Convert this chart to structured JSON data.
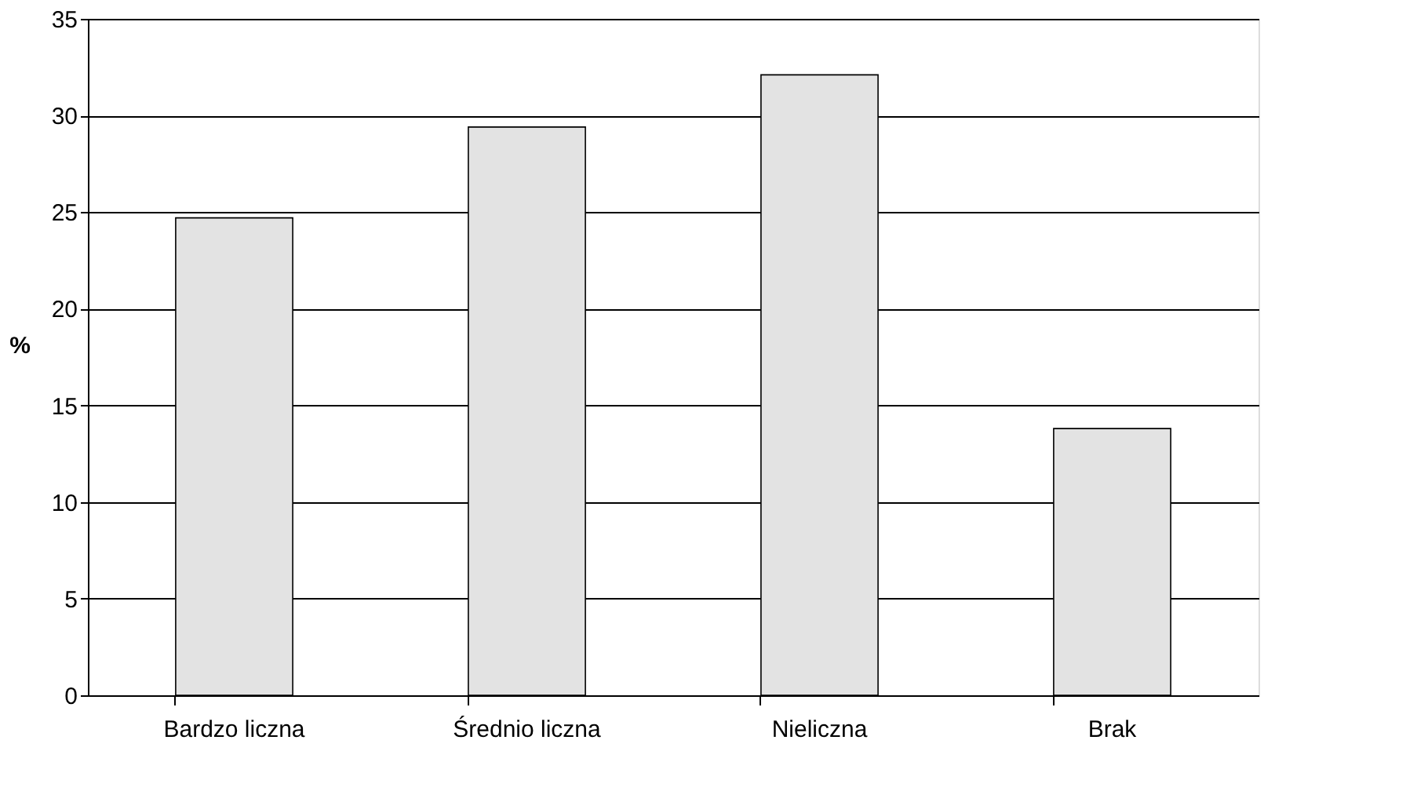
{
  "chart_data": {
    "type": "bar",
    "ylabel": "%",
    "categories": [
      "Bardzo liczna",
      "Średnio liczna",
      "Nieliczna",
      "Brak"
    ],
    "values": [
      24.7,
      29.4,
      32.1,
      13.8
    ],
    "color": "#e3e3e3",
    "ylim": [
      0,
      35
    ],
    "yticks": [
      0,
      5,
      10,
      15,
      20,
      25,
      30,
      35
    ],
    "grid": "y"
  }
}
